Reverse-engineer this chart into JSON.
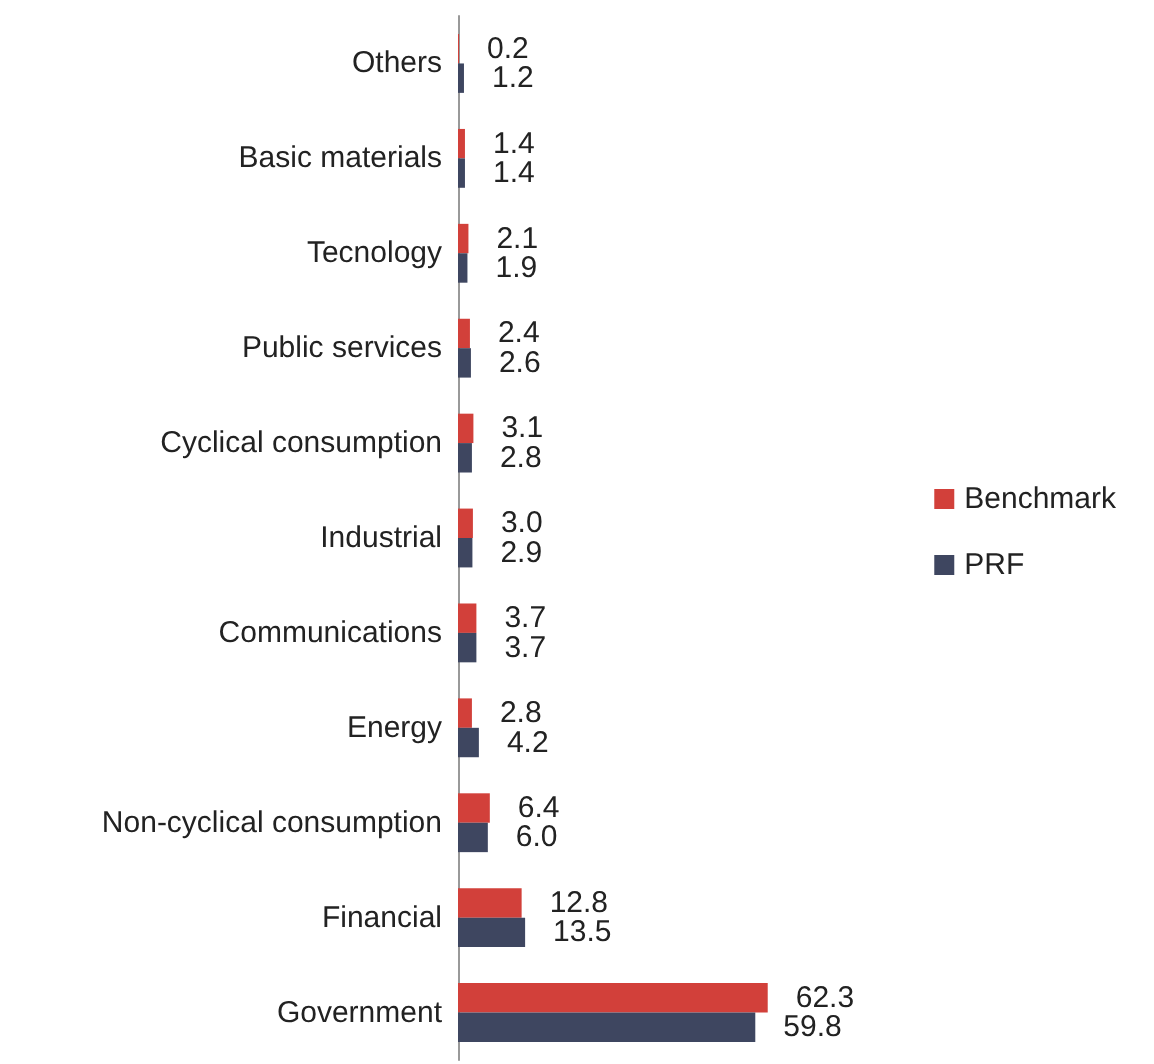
{
  "chart_data": {
    "type": "bar",
    "orientation": "horizontal",
    "categories": [
      "Others",
      "Basic materials",
      "Tecnology",
      "Public services",
      "Cyclical consumption",
      "Industrial",
      "Communications",
      "Energy",
      "Non-cyclical consumption",
      "Financial",
      "Government"
    ],
    "series": [
      {
        "name": "Benchmark",
        "color": "#d2403a",
        "values": [
          0.2,
          1.4,
          2.1,
          2.4,
          3.1,
          3.0,
          3.7,
          2.8,
          6.4,
          12.8,
          62.3
        ],
        "value_labels": [
          "0.2",
          "1.4",
          "2.1",
          "2.4",
          "3.1",
          "3.0",
          "3.7",
          "2.8",
          "6.4",
          "12.8",
          "62.3"
        ]
      },
      {
        "name": "PRF",
        "color": "#3e4660",
        "values": [
          1.2,
          1.4,
          1.9,
          2.6,
          2.8,
          2.9,
          3.7,
          4.2,
          6.0,
          13.5,
          59.8
        ],
        "value_labels": [
          "1.2",
          "1.4",
          "1.9",
          "2.6",
          "2.8",
          "2.9",
          "3.7",
          "4.2",
          "6.0",
          "13.5",
          "59.8"
        ]
      }
    ],
    "legend": "right"
  }
}
